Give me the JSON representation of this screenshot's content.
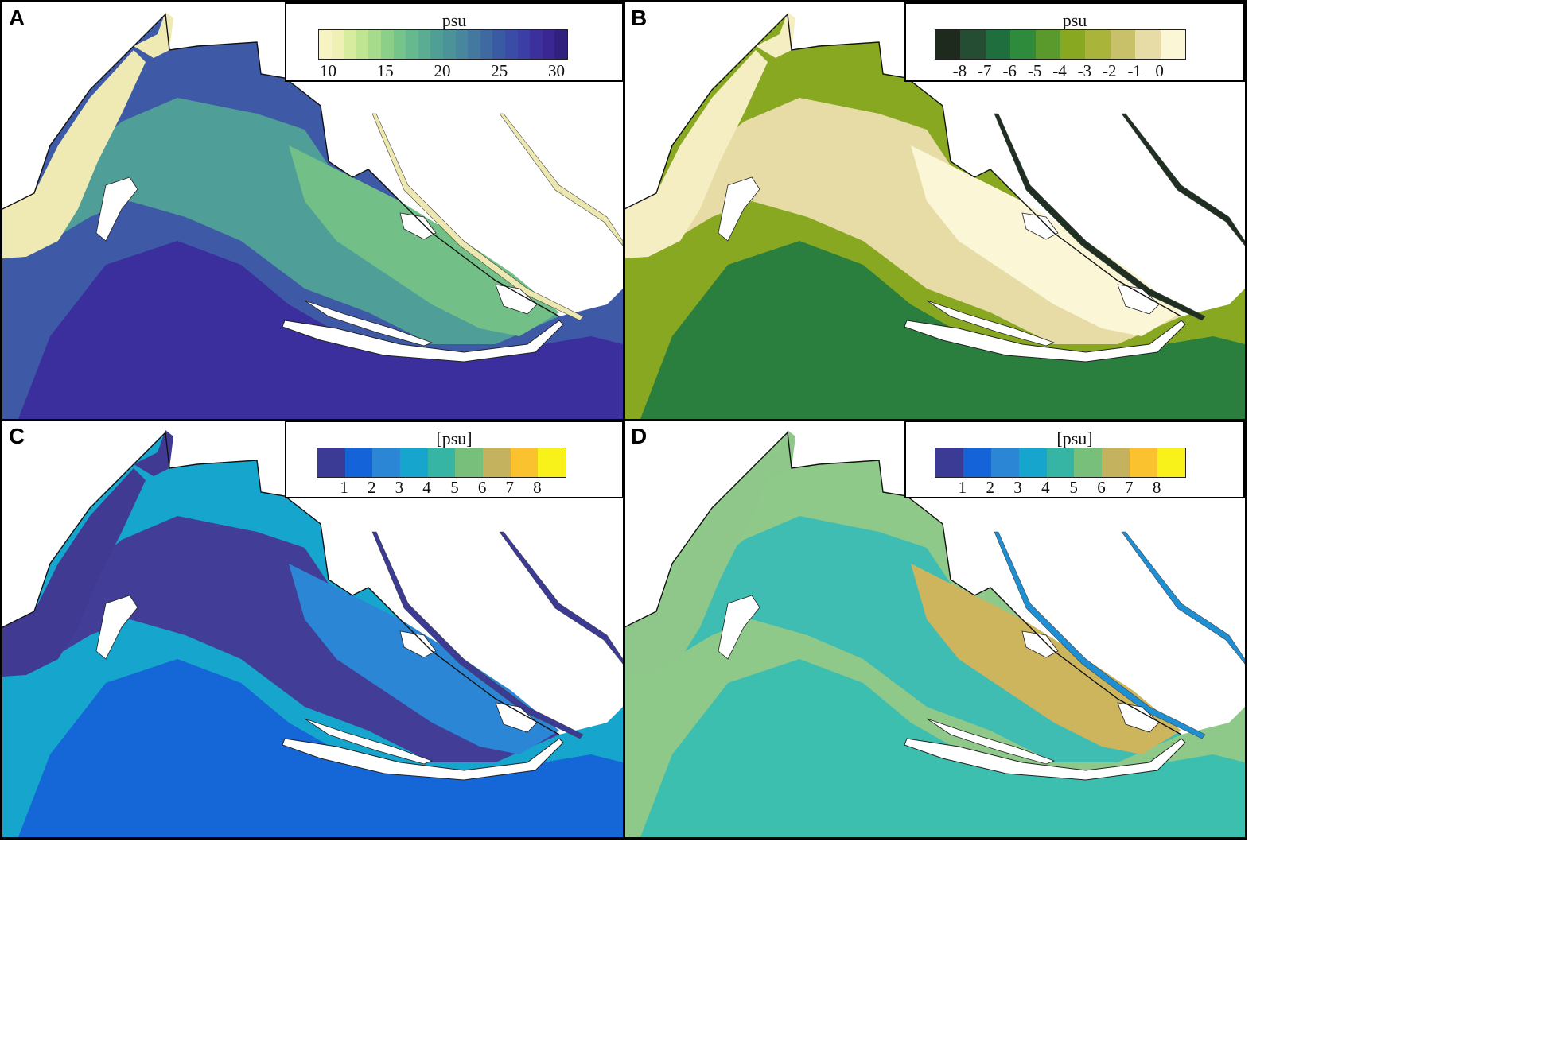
{
  "panels": [
    {
      "letter": "A",
      "legend": {
        "title": "psu",
        "colors": [
          "#f7f3c2",
          "#eef1b3",
          "#d8ec9f",
          "#bfe492",
          "#a5db8b",
          "#8ccf89",
          "#77c48a",
          "#66b98e",
          "#5aac92",
          "#4f9f96",
          "#4b9399",
          "#47869c",
          "#43789f",
          "#3f6aa1",
          "#3a5ba3",
          "#3a4ca5",
          "#3b3ea5",
          "#3c309f",
          "#3a2792",
          "#31207d"
        ],
        "ticks": [
          {
            "label": "10",
            "frac": 0.04
          },
          {
            "label": "15",
            "frac": 0.27
          },
          {
            "label": "20",
            "frac": 0.5
          },
          {
            "label": "25",
            "frac": 0.73
          },
          {
            "label": "30",
            "frac": 0.96
          }
        ]
      },
      "colors": {
        "sea_deep": "#3a2f9c",
        "sea_mid": "#3e5aa6",
        "lagoon": "#4f9e98",
        "lagoon_light": "#72c088",
        "fresh": "#efe9b4",
        "channel": "#ede7b0",
        "outside": "#ffffff"
      }
    },
    {
      "letter": "B",
      "legend": {
        "title": "psu",
        "colors": [
          "#1e2a1e",
          "#244d33",
          "#1f6f3e",
          "#2f8b3c",
          "#5a9a2d",
          "#88a822",
          "#a9b43a",
          "#c9c06a",
          "#e8dca6",
          "#fbf6d6"
        ],
        "ticks": [
          {
            "label": "-8",
            "frac": 0.1
          },
          {
            "label": "-7",
            "frac": 0.2
          },
          {
            "label": "-6",
            "frac": 0.3
          },
          {
            "label": "-5",
            "frac": 0.4
          },
          {
            "label": "-4",
            "frac": 0.5
          },
          {
            "label": "-3",
            "frac": 0.6
          },
          {
            "label": "-2",
            "frac": 0.7
          },
          {
            "label": "-1",
            "frac": 0.8
          },
          {
            "label": "0",
            "frac": 0.9
          }
        ]
      },
      "colors": {
        "sea_deep": "#2a7f3f",
        "sea_mid": "#88a822",
        "lagoon": "#e8dca6",
        "lagoon_light": "#fbf6d6",
        "fresh": "#f4eec2",
        "channel": "#1f2f22",
        "outside": "#ffffff"
      }
    },
    {
      "letter": "C",
      "legend": {
        "title": "[psu]",
        "colors": [
          "#3b3a94",
          "#1463d8",
          "#2b86d6",
          "#16a5cc",
          "#36b5a5",
          "#78bf7c",
          "#c4b25e",
          "#f9c22e",
          "#f8f21a"
        ],
        "ticks": [
          {
            "label": "1",
            "frac": 0.111
          },
          {
            "label": "2",
            "frac": 0.222
          },
          {
            "label": "3",
            "frac": 0.333
          },
          {
            "label": "4",
            "frac": 0.444
          },
          {
            "label": "5",
            "frac": 0.556
          },
          {
            "label": "6",
            "frac": 0.667
          },
          {
            "label": "7",
            "frac": 0.778
          },
          {
            "label": "8",
            "frac": 0.889
          }
        ]
      },
      "colors": {
        "sea_deep": "#1566d6",
        "sea_mid": "#16a5cc",
        "lagoon": "#423d97",
        "lagoon_light": "#2b86d6",
        "fresh": "#403a92",
        "channel": "#3b3a94",
        "outside": "#ffffff"
      }
    },
    {
      "letter": "D",
      "legend": {
        "title": "[psu]",
        "colors": [
          "#3b3a94",
          "#1463d8",
          "#2b86d6",
          "#16a5cc",
          "#36b5a5",
          "#78bf7c",
          "#c4b25e",
          "#f9c22e",
          "#f8f21a"
        ],
        "ticks": [
          {
            "label": "1",
            "frac": 0.111
          },
          {
            "label": "2",
            "frac": 0.222
          },
          {
            "label": "3",
            "frac": 0.333
          },
          {
            "label": "4",
            "frac": 0.444
          },
          {
            "label": "5",
            "frac": 0.556
          },
          {
            "label": "6",
            "frac": 0.667
          },
          {
            "label": "7",
            "frac": 0.778
          },
          {
            "label": "8",
            "frac": 0.889
          }
        ]
      },
      "colors": {
        "sea_deep": "#3dbfb0",
        "sea_mid": "#8ec98a",
        "lagoon": "#3fbdb2",
        "lagoon_light": "#cdb55e",
        "fresh": "#8fc68a",
        "channel": "#1e8fd2",
        "outside": "#ffffff"
      }
    }
  ]
}
